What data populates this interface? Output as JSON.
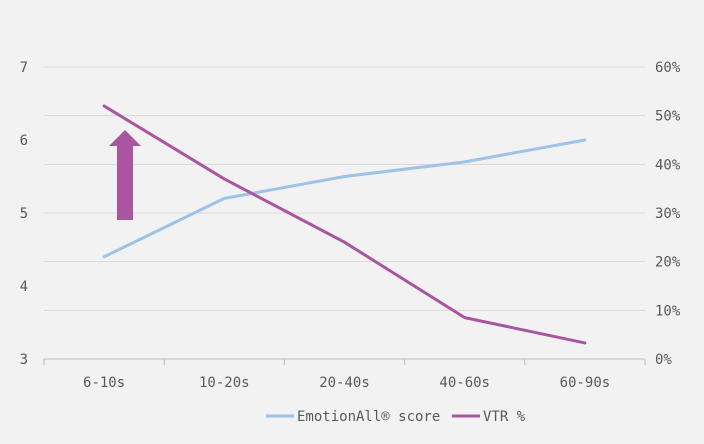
{
  "chart_data": {
    "type": "line",
    "categories": [
      "6-10s",
      "10-20s",
      "20-40s",
      "40-60s",
      "60-90s"
    ],
    "series": [
      {
        "name": "EmotionAll® score",
        "axis": "left",
        "color": "#9dc3e6",
        "values": [
          4.4,
          5.2,
          5.5,
          5.7,
          6.0
        ]
      },
      {
        "name": "VTR %",
        "axis": "right",
        "color": "#a9559f",
        "values": [
          52,
          37,
          24,
          8.5,
          3.3
        ]
      }
    ],
    "y_left": {
      "min": 3,
      "max": 7,
      "ticks": [
        "3",
        "4",
        "5",
        "6",
        "7"
      ]
    },
    "y_right": {
      "min": 0,
      "max": 60,
      "ticks": [
        "0%",
        "10%",
        "20%",
        "30%",
        "40%",
        "50%",
        "60%"
      ]
    },
    "grid": true,
    "legend_position": "bottom",
    "annotation": {
      "type": "up-arrow",
      "color": "#a9559f"
    }
  }
}
